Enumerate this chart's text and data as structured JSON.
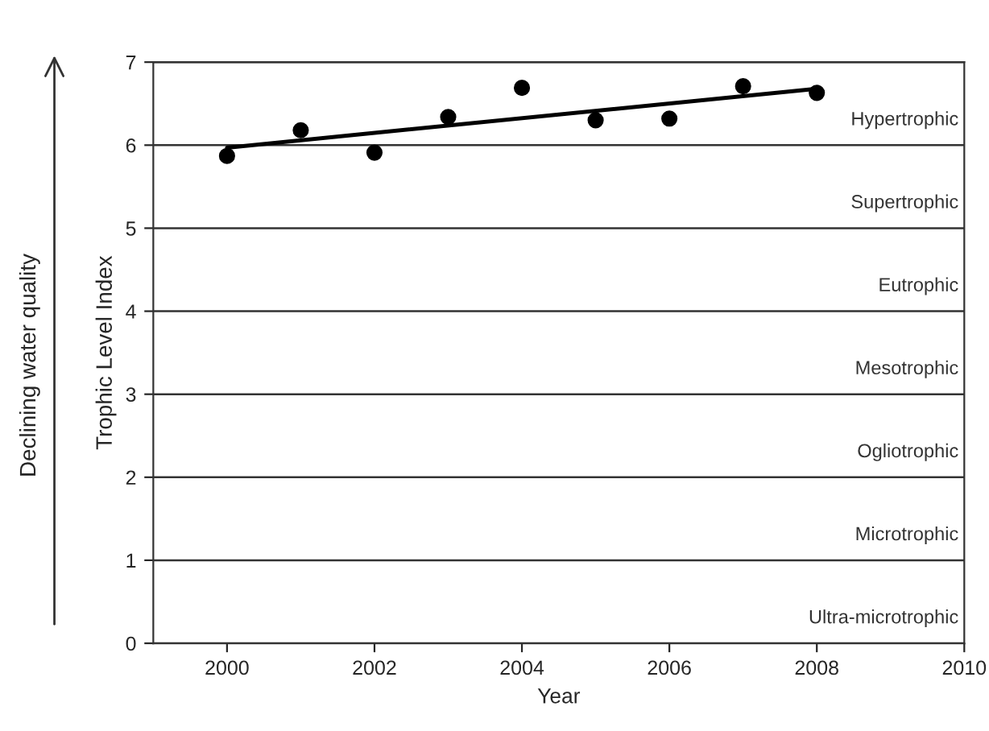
{
  "chart_data": {
    "type": "scatter",
    "xlabel": "Year",
    "ylabel": "Trophic Level Index",
    "xlim": [
      1999,
      2010
    ],
    "xticks": [
      2000,
      2002,
      2004,
      2006,
      2008,
      2010
    ],
    "ylim": [
      0,
      7
    ],
    "yticks": [
      0,
      1,
      2,
      3,
      4,
      5,
      6,
      7
    ],
    "grid": "y",
    "series": [
      {
        "color": "#000000",
        "marker": "circle",
        "x": [
          2000,
          2001,
          2002,
          2003,
          2004,
          2005,
          2006,
          2007,
          2008
        ],
        "values": [
          5.87,
          6.18,
          5.91,
          6.34,
          6.69,
          6.3,
          6.32,
          6.71,
          6.63
        ]
      },
      {
        "type": "line",
        "color": "#000000",
        "x": [
          2000,
          2008
        ],
        "values": [
          5.97,
          6.68
        ]
      }
    ],
    "annotations": [
      "Declining water quality",
      "Hypertrophic",
      "Supertrophic",
      "Eutrophic",
      "Mesotrophic",
      "Ogliotrophic",
      "Microtrophic",
      "Ultra-microtrophic"
    ]
  }
}
